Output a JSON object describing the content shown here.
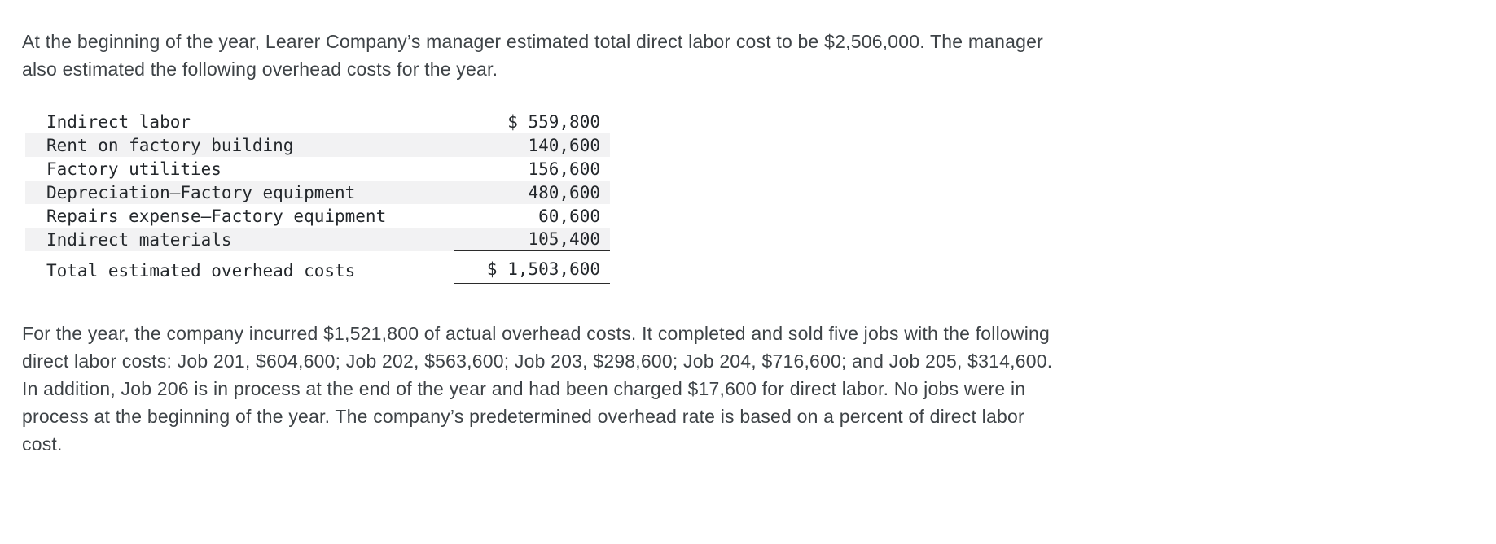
{
  "intro_paragraph": [
    "At the beginning of the year, Learer Company’s manager estimated total direct labor cost to be $2,506,000. The manager",
    "also estimated the following overhead costs for the year."
  ],
  "overhead_table": {
    "rows": [
      {
        "label": "Indirect labor",
        "amount": "$ 559,800"
      },
      {
        "label": "Rent on factory building",
        "amount": "140,600"
      },
      {
        "label": "Factory utilities",
        "amount": "156,600"
      },
      {
        "label": "Depreciation—Factory equipment",
        "amount": "480,600"
      },
      {
        "label": "Repairs expense—Factory equipment",
        "amount": "60,600"
      },
      {
        "label": "Indirect materials",
        "amount": "105,400"
      }
    ],
    "total_row": {
      "label": "Total estimated overhead costs",
      "amount": "$ 1,503,600"
    }
  },
  "details_paragraph": [
    "For the year, the company incurred $1,521,800 of actual overhead costs. It completed and sold five jobs with the following",
    "direct labor costs: Job 201, $604,600; Job 202, $563,600; Job 203, $298,600; Job 204, $716,600; and Job 205, $314,600.",
    "In addition, Job 206 is in process at the end of the year and had been charged $17,600 for direct labor. No jobs were in",
    "process at the beginning of the year. The company’s predetermined overhead rate is based on a percent of direct labor",
    "cost."
  ],
  "colors": {
    "row_shade": "#f2f2f3",
    "body_text": "#3e4347"
  }
}
